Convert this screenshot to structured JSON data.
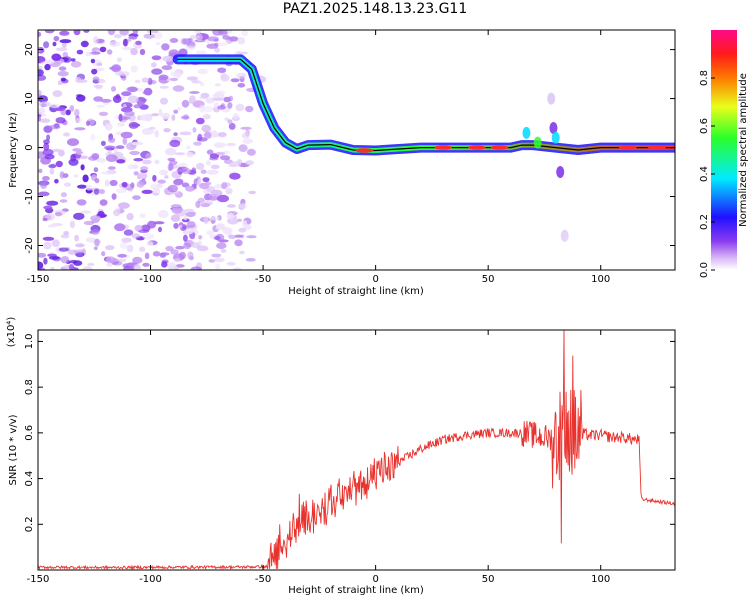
{
  "title": "PAZ1.2025.148.13.23.G11",
  "colors": {
    "signal": "#e8322e",
    "axis": "#000000",
    "background": "#ffffff"
  },
  "chart_data": [
    {
      "type": "heatmap",
      "xlabel": "Height of straight line (km)",
      "ylabel": "Frequency (Hz)",
      "xlim": [
        -150,
        133
      ],
      "ylim": [
        -25,
        24
      ],
      "xticks": [
        -150,
        -100,
        -50,
        0,
        50,
        100
      ],
      "yticks": [
        -20,
        -10,
        0,
        10,
        20
      ],
      "colorbar": {
        "label": "Normalized spectral amplitude",
        "range": [
          0,
          1
        ],
        "ticks": [
          "0.0",
          "0.2",
          "0.4",
          "0.6",
          "0.8"
        ]
      },
      "frequency_track": {
        "x": [
          -88,
          -80,
          -70,
          -60,
          -55,
          -50,
          -45,
          -40,
          -35,
          -30,
          -20,
          -10,
          0,
          20,
          40,
          60,
          65,
          70,
          80,
          90,
          100,
          133
        ],
        "y": [
          18,
          18,
          18,
          18,
          16,
          9,
          4,
          1,
          -0.3,
          0.5,
          0.6,
          -0.5,
          -0.6,
          0,
          0,
          0,
          0.5,
          0.5,
          0,
          -0.5,
          0,
          0
        ]
      },
      "noise_region_x": [
        -150,
        -50
      ]
    },
    {
      "type": "line",
      "xlabel": "Height of straight line (km)",
      "ylabel": "SNR (10 * v/v)",
      "y_multiplier": "(x10⁴)",
      "xlim": [
        -150,
        133
      ],
      "ylim": [
        0,
        1.05
      ],
      "xticks": [
        -150,
        -100,
        -50,
        0,
        50,
        100
      ],
      "yticks": [
        "0.2",
        "0.4",
        "0.6",
        "0.8",
        "1.0"
      ],
      "series": [
        {
          "x": [
            -150,
            -120,
            -90,
            -60,
            -48,
            -45,
            -42,
            -38,
            -33,
            -25,
            -20,
            -10,
            0,
            10,
            20,
            30,
            40,
            50,
            60,
            65,
            70,
            75,
            80,
            82,
            84,
            86,
            88,
            90,
            95,
            100,
            105,
            110,
            115,
            117,
            118,
            125,
            133
          ],
          "values": [
            0.012,
            0.011,
            0.012,
            0.013,
            0.015,
            0.06,
            0.1,
            0.15,
            0.21,
            0.26,
            0.3,
            0.36,
            0.41,
            0.47,
            0.53,
            0.57,
            0.59,
            0.6,
            0.6,
            0.6,
            0.59,
            0.58,
            0.57,
            0.6,
            0.62,
            0.6,
            0.58,
            0.6,
            0.59,
            0.59,
            0.58,
            0.58,
            0.57,
            0.57,
            0.31,
            0.3,
            0.29
          ]
        }
      ]
    }
  ]
}
